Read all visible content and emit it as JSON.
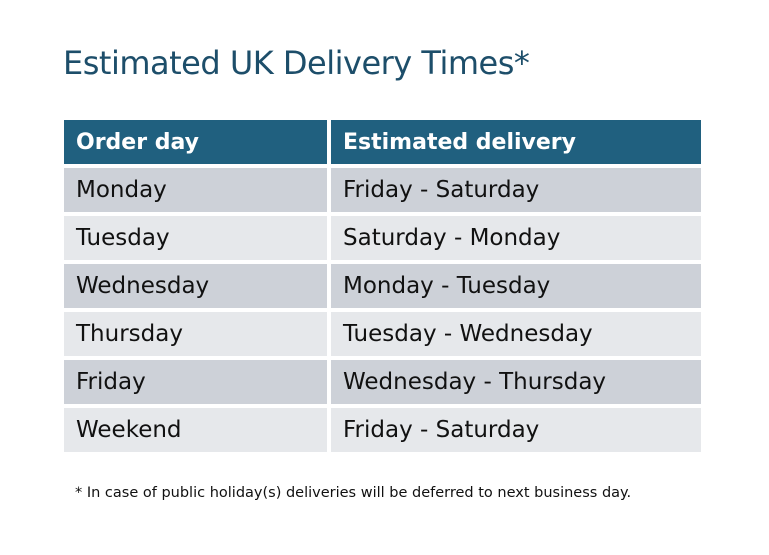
{
  "title": "Estimated UK Delivery Times*",
  "table": {
    "headers": [
      "Order day",
      "Estimated delivery"
    ],
    "rows": [
      [
        "Monday",
        "Friday - Saturday"
      ],
      [
        "Tuesday",
        "Saturday - Monday"
      ],
      [
        "Wednesday",
        "Monday - Tuesday"
      ],
      [
        "Thursday",
        "Tuesday - Wednesday"
      ],
      [
        "Friday",
        "Wednesday - Thursday"
      ],
      [
        "Weekend",
        "Friday - Saturday"
      ]
    ]
  },
  "footnote": "* In case of public holiday(s) deliveries will be deferred to next business day.",
  "colors": {
    "header": "#20607f",
    "title": "#1d4e6a",
    "row_dark": "#cdd1d8",
    "row_light": "#e6e8eb"
  }
}
